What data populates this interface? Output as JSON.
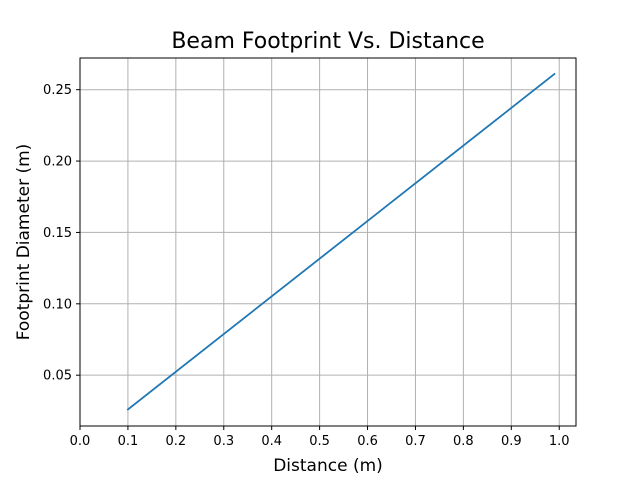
{
  "chart_data": {
    "type": "line",
    "title": "Beam Footprint Vs. Distance",
    "xlabel": "Distance (m)",
    "ylabel": "Footprint Diameter (m)",
    "xlim": [
      0.0,
      1.035
    ],
    "ylim": [
      0.0144,
      0.2722
    ],
    "xticks": [
      0.0,
      0.1,
      0.2,
      0.3,
      0.4,
      0.5,
      0.6,
      0.7,
      0.8,
      0.9,
      1.0
    ],
    "xtick_labels": [
      "0.0",
      "0.1",
      "0.2",
      "0.3",
      "0.4",
      "0.5",
      "0.6",
      "0.7",
      "0.8",
      "0.9",
      "1.0"
    ],
    "yticks": [
      0.05,
      0.1,
      0.15,
      0.2,
      0.25
    ],
    "ytick_labels": [
      "0.05",
      "0.10",
      "0.15",
      "0.20",
      "0.25"
    ],
    "grid": true,
    "series": [
      {
        "color": "#1f77b4",
        "x": [
          0.1,
          0.99
        ],
        "y": [
          0.026,
          0.261
        ]
      }
    ]
  }
}
